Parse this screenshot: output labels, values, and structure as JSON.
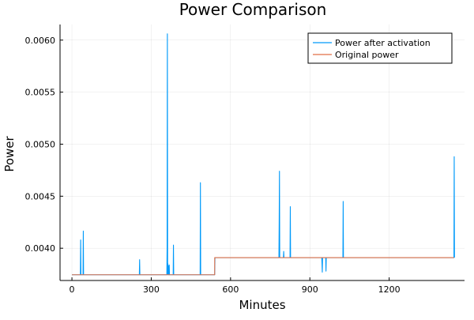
{
  "chart_data": {
    "type": "line",
    "title": "Power Comparison",
    "xlabel": "Minutes",
    "ylabel": "Power",
    "xlim": [
      -45,
      1485
    ],
    "ylim": [
      0.00369,
      0.00615
    ],
    "x_ticks": [
      0,
      300,
      600,
      900,
      1200
    ],
    "x_tick_labels": [
      "0",
      "300",
      "600",
      "900",
      "1200"
    ],
    "y_ticks": [
      0.004,
      0.0045,
      0.005,
      0.0055,
      0.006
    ],
    "y_tick_labels": [
      "0.0040",
      "0.0045",
      "0.0050",
      "0.0055",
      "0.0060"
    ],
    "grid": true,
    "legend_position": "top-right",
    "series": [
      {
        "name": "Power after activation",
        "color": "#009AFA",
        "x": [
          0,
          32,
          33,
          34,
          42,
          43,
          44,
          255,
          256,
          257,
          359,
          360,
          361,
          362,
          363,
          364,
          365,
          366,
          367,
          368,
          369,
          383,
          384,
          385,
          485,
          486,
          487,
          540,
          541,
          783,
          784,
          785,
          786,
          787,
          788,
          800,
          801,
          802,
          825,
          826,
          827,
          945,
          946,
          947,
          948,
          960,
          961,
          962,
          963,
          1025,
          1026,
          1027,
          1445,
          1446,
          1447
        ],
        "y": [
          0.003745,
          0.003745,
          0.00408,
          0.003745,
          0.003745,
          0.004165,
          0.003745,
          0.003745,
          0.00389,
          0.003745,
          0.003745,
          0.004,
          0.00606,
          0.00375,
          0.00385,
          0.003745,
          0.00383,
          0.00375,
          0.003745,
          0.00384,
          0.003745,
          0.003745,
          0.00403,
          0.003745,
          0.003745,
          0.00463,
          0.003745,
          0.003745,
          0.00391,
          0.00391,
          0.00426,
          0.00474,
          0.00391,
          0.00391,
          0.00391,
          0.00391,
          0.00397,
          0.00391,
          0.00391,
          0.0044,
          0.00391,
          0.00391,
          0.00385,
          0.00377,
          0.00391,
          0.00391,
          0.00378,
          0.00391,
          0.00391,
          0.00391,
          0.00445,
          0.00391,
          0.00391,
          0.00488,
          0.00391
        ]
      },
      {
        "name": "Original power",
        "color": "#E26F46",
        "x": [
          0,
          540,
          540,
          1445
        ],
        "y": [
          0.003745,
          0.003745,
          0.00391,
          0.00391
        ]
      }
    ]
  }
}
